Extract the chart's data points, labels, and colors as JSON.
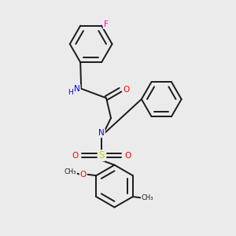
{
  "bg_color": "#ebebeb",
  "bond_color": "#1a1a1a",
  "atom_colors": {
    "N": "#0000ff",
    "O": "#ff0000",
    "S": "#cccc00",
    "F": "#ff00cc",
    "C": "#1a1a1a"
  },
  "figsize": [
    3.0,
    3.0
  ],
  "dpi": 100,
  "xlim": [
    0,
    10
  ],
  "ylim": [
    0,
    10
  ]
}
